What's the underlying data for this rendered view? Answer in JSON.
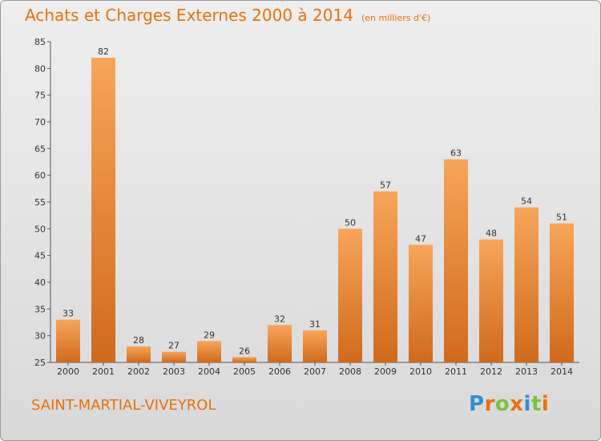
{
  "title": "Achats et Charges Externes 2000 à 2014",
  "subtitle": "(en milliers d'€)",
  "commune": "SAINT-MARTIAL-VIVEYROL",
  "logo": {
    "letters": [
      "P",
      "r",
      "o",
      "x",
      "i",
      "t",
      "i"
    ],
    "colors": [
      "#2f8fd6",
      "#e8720c",
      "#7cc242",
      "#e8720c",
      "#2f8fd6",
      "#7cc242",
      "#e8720c"
    ]
  },
  "colors": {
    "accent": "#e8720c",
    "bar_top": "#f7a55a",
    "bar_bottom": "#d06a1c"
  },
  "chart_data": {
    "type": "bar",
    "title": "Achats et Charges Externes 2000 à 2014",
    "categories": [
      "2000",
      "2001",
      "2002",
      "2003",
      "2004",
      "2005",
      "2006",
      "2007",
      "2008",
      "2009",
      "2010",
      "2011",
      "2012",
      "2013",
      "2014"
    ],
    "values": [
      33,
      82,
      28,
      27,
      29,
      26,
      32,
      31,
      50,
      57,
      47,
      63,
      48,
      54,
      51
    ],
    "ylim": [
      25,
      85
    ],
    "yticks": [
      25,
      30,
      35,
      40,
      45,
      50,
      55,
      60,
      65,
      70,
      75,
      80,
      85
    ],
    "grid": false,
    "xlabel": "",
    "ylabel": ""
  }
}
